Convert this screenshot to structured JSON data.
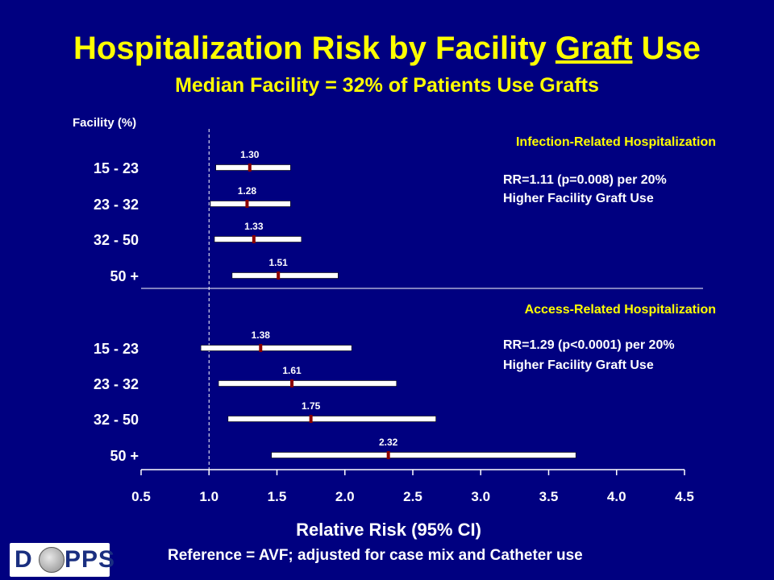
{
  "header": {
    "title_pre": "Hospitalization Risk by Facility ",
    "title_underlined": "Graft",
    "title_post": " Use",
    "subtitle": "Median Facility = 32% of Patients Use Grafts"
  },
  "footer": {
    "note": "Reference = AVF; adjusted for case mix and Catheter use",
    "logo_pre": "D",
    "logo_post": "PPS"
  },
  "colors": {
    "background": "#000080",
    "title": "#ffff00",
    "section_label": "#ffff00",
    "bar": "#ffffff",
    "point": "#8b0000"
  },
  "chart_data": {
    "type": "forest",
    "category_label": "Facility (%)",
    "xlabel": "Relative Risk (95% CI)",
    "xlim": [
      0.5,
      4.5
    ],
    "xticks": [
      "0.5",
      "1.0",
      "1.5",
      "2.0",
      "2.5",
      "3.0",
      "3.5",
      "4.0",
      "4.5"
    ],
    "reference_line": 1.0,
    "groups": [
      {
        "name": "Infection-Related Hospitalization",
        "annotation": [
          "RR=1.11 (p=0.008) per 20%",
          "Higher Facility Graft Use"
        ],
        "rows": [
          {
            "category": "15 - 23",
            "estimate": 1.3,
            "label": "1.30",
            "lower": 1.05,
            "upper": 1.6
          },
          {
            "category": "23 - 32",
            "estimate": 1.28,
            "label": "1.28",
            "lower": 1.01,
            "upper": 1.6
          },
          {
            "category": "32 - 50",
            "estimate": 1.33,
            "label": "1.33",
            "lower": 1.04,
            "upper": 1.68
          },
          {
            "category": "50 +",
            "estimate": 1.51,
            "label": "1.51",
            "lower": 1.17,
            "upper": 1.95
          }
        ]
      },
      {
        "name": "Access-Related Hospitalization",
        "annotation": [
          "RR=1.29 (p<0.0001) per 20%",
          "Higher Facility Graft Use"
        ],
        "rows": [
          {
            "category": "15 - 23",
            "estimate": 1.38,
            "label": "1.38",
            "lower": 0.94,
            "upper": 2.05
          },
          {
            "category": "23 - 32",
            "estimate": 1.61,
            "label": "1.61",
            "lower": 1.07,
            "upper": 2.38
          },
          {
            "category": "32 - 50",
            "estimate": 1.75,
            "label": "1.75",
            "lower": 1.14,
            "upper": 2.67
          },
          {
            "category": "50 +",
            "estimate": 2.32,
            "label": "2.32",
            "lower": 1.46,
            "upper": 3.7
          }
        ]
      }
    ]
  }
}
